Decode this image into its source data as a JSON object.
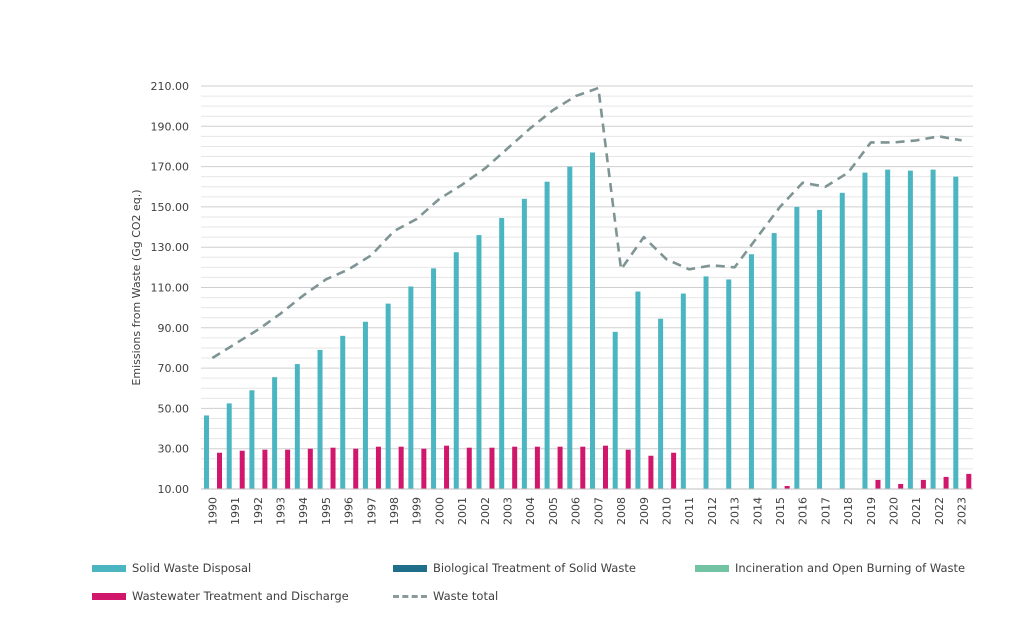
{
  "chart_data": {
    "type": "bar",
    "title": "",
    "xlabel": "",
    "ylabel": "Emissions from Waste (Gg CO2 eq.)",
    "ylim": [
      10,
      210
    ],
    "yticks": [
      "10.00",
      "30.00",
      "50.00",
      "70.00",
      "90.00",
      "110.00",
      "130.00",
      "150.00",
      "170.00",
      "190.00",
      "210.00"
    ],
    "grid": true,
    "legend_position": "bottom",
    "categories": [
      "1990",
      "1991",
      "1992",
      "1993",
      "1994",
      "1995",
      "1996",
      "1997",
      "1998",
      "1999",
      "2000",
      "2001",
      "2002",
      "2003",
      "2004",
      "2005",
      "2006",
      "2007",
      "2008",
      "2009",
      "2010",
      "2011",
      "2012",
      "2013",
      "2014",
      "2015",
      "2016",
      "2017",
      "2018",
      "2019",
      "2020",
      "2021",
      "2022",
      "2023"
    ],
    "series": [
      {
        "name": "Solid Waste Disposal",
        "type": "bar",
        "color": "#4bb5c1",
        "values": [
          46.5,
          52.5,
          59,
          65.5,
          72,
          79,
          86,
          93,
          102,
          110.5,
          119.5,
          127.5,
          136,
          144.5,
          154,
          162.5,
          170,
          177,
          88,
          108,
          94.5,
          107,
          115.5,
          114,
          126.5,
          137,
          150,
          148.5,
          157,
          167,
          168.5,
          168,
          168.5,
          165
        ]
      },
      {
        "name": "Biological Treatment of Solid Waste",
        "type": "bar",
        "color": "#1f6f8b",
        "values": [
          0,
          0,
          0,
          0,
          0,
          0,
          0,
          0,
          0,
          0,
          0,
          0,
          0,
          0,
          0,
          0,
          0,
          0,
          0,
          0,
          0,
          0,
          0,
          0,
          0,
          0,
          0,
          0,
          0,
          0,
          0,
          0,
          0,
          0
        ]
      },
      {
        "name": "Incineration and Open Burning of Waste",
        "type": "bar",
        "color": "#72c2a4",
        "values": [
          0,
          0,
          0,
          0,
          0,
          0,
          0,
          0,
          0,
          0,
          0,
          0,
          0,
          0,
          0,
          0,
          0,
          0,
          0,
          0,
          0,
          0,
          0,
          0,
          0,
          0,
          0,
          0,
          0,
          0,
          0,
          0,
          0,
          0
        ]
      },
      {
        "name": "Wastewater Treatment and Discharge",
        "type": "bar",
        "color": "#d0176b",
        "values": [
          28,
          29,
          29.5,
          29.5,
          30,
          30.5,
          30,
          31,
          31,
          30,
          31.5,
          30.5,
          30.5,
          31,
          31,
          31,
          31,
          31.5,
          29.5,
          26.5,
          28,
          0,
          0,
          0,
          0,
          11.5,
          0,
          0,
          0,
          14.5,
          12.5,
          14.5,
          16,
          17.5
        ]
      },
      {
        "name": "Waste total",
        "type": "line",
        "color": "#7f9494",
        "dash": true,
        "values": [
          75,
          82,
          89,
          97,
          106,
          114,
          119,
          126,
          138,
          144,
          154,
          161,
          169,
          179,
          189,
          198,
          205,
          209,
          119,
          135,
          124,
          119,
          121,
          120,
          135,
          150,
          162,
          160,
          167,
          182,
          182,
          183,
          185,
          183
        ]
      }
    ]
  }
}
